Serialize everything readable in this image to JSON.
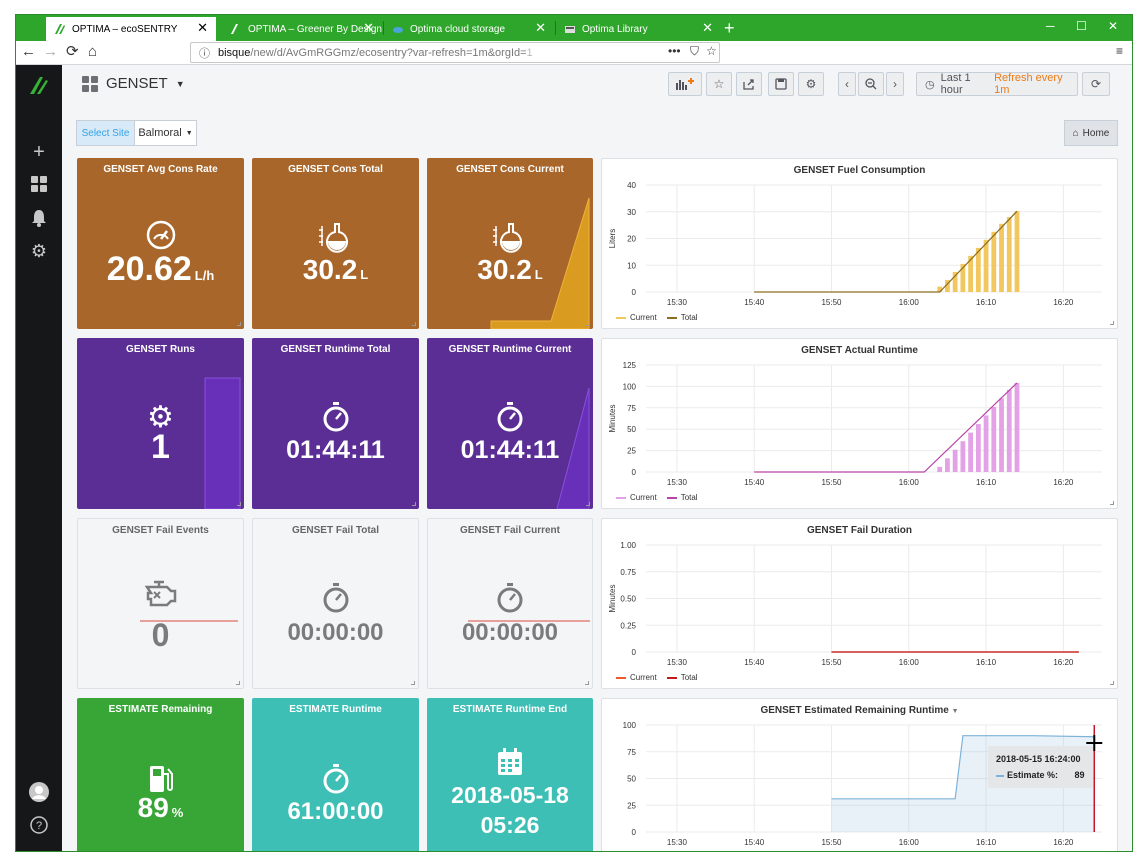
{
  "browser": {
    "tabs": [
      {
        "title": "OPTIMA – ecoSENTRY",
        "active": true
      },
      {
        "title": "OPTIMA – Greener By Design",
        "active": false
      },
      {
        "title": "Optima cloud storage",
        "active": false
      },
      {
        "title": "Optima Library",
        "active": false
      }
    ],
    "url": {
      "host": "bisque",
      "path": "/new/d/AvGmRGGmz/ecosentry?var-refresh=1m&orgId=",
      "tail": "1"
    }
  },
  "header": {
    "dashboard_title": "GENSET",
    "time_range": "Last 1 hour",
    "refresh_label": "Refresh every 1m"
  },
  "filters": {
    "site_label": "Select Site",
    "site_value": "Balmoral",
    "home_label": "Home"
  },
  "colors": {
    "fuel": "#a8662a",
    "runtime": "#5a2e94",
    "fail": "#f4f5f7",
    "estimate_green": "#37a637",
    "estimate_teal": "#3dbfb5",
    "fuel_current": "#f1c75e",
    "fuel_total": "#8c6d1f",
    "runtime_current": "#e3a1e6",
    "runtime_total": "#ba43a9",
    "fail_current": "#ef5a28",
    "fail_total": "#bf1b1b",
    "estimate_line": "#7eb2d8"
  },
  "stats": {
    "avg_cons_rate": {
      "title": "GENSET Avg Cons Rate",
      "value": "20.62",
      "unit": "L/h",
      "icon": "speedometer-icon"
    },
    "cons_total": {
      "title": "GENSET Cons Total",
      "value": "30.2",
      "unit": "L",
      "icon": "flask-icon"
    },
    "cons_current": {
      "title": "GENSET Cons Current",
      "value": "30.2",
      "unit": "L",
      "icon": "flask-icon"
    },
    "runs": {
      "title": "GENSET Runs",
      "value": "1",
      "icon": "gear-icon"
    },
    "runtime_total": {
      "title": "GENSET Runtime Total",
      "value": "01:44:11",
      "icon": "stopwatch-icon"
    },
    "runtime_current": {
      "title": "GENSET Runtime Current",
      "value": "01:44:11",
      "icon": "stopwatch-icon"
    },
    "fail_events": {
      "title": "GENSET Fail Events",
      "value": "0",
      "icon": "engine-fail-icon"
    },
    "fail_total": {
      "title": "GENSET Fail Total",
      "value": "00:00:00",
      "icon": "stopwatch-icon"
    },
    "fail_current": {
      "title": "GENSET Fail Current",
      "value": "00:00:00",
      "icon": "stopwatch-icon"
    },
    "est_remaining": {
      "title": "ESTIMATE Remaining",
      "value": "89",
      "unit": "%",
      "icon": "fuel-pump-icon"
    },
    "est_runtime": {
      "title": "ESTIMATE Runtime",
      "value": "61:00:00",
      "icon": "stopwatch-icon"
    },
    "est_runtime_end": {
      "title": "ESTIMATE Runtime End",
      "value_date": "2018-05-18",
      "value_time": "05:26",
      "icon": "calendar-icon"
    }
  },
  "graphs": {
    "fuel": {
      "title": "GENSET Fuel Consumption",
      "ylabel": "Liters",
      "legend": [
        "Current",
        "Total"
      ]
    },
    "runtime": {
      "title": "GENSET Actual Runtime",
      "ylabel": "Minutes",
      "legend": [
        "Current",
        "Total"
      ]
    },
    "fail": {
      "title": "GENSET Fail Duration",
      "ylabel": "Minutes",
      "legend": [
        "Current",
        "Total"
      ]
    },
    "estimate": {
      "title": "GENSET Estimated Remaining Runtime"
    }
  },
  "tooltip": {
    "time": "2018-05-15 16:24:00",
    "series": "Estimate %:",
    "value": "89"
  },
  "chart_data": [
    {
      "type": "bar",
      "title": "GENSET Fuel Consumption",
      "ylabel": "Liters",
      "ylim": [
        0,
        40
      ],
      "yticks": [
        "0",
        "10",
        "20",
        "30",
        "40"
      ],
      "xticks": [
        "15:30",
        "15:40",
        "15:50",
        "16:00",
        "16:10",
        "16:20"
      ],
      "xlim_minutes": [
        926,
        985
      ],
      "series": [
        {
          "name": "Current",
          "x_start_minutes": 964,
          "x_end_minutes": 974,
          "values": [
            2,
            4.5,
            7.5,
            10.5,
            13.5,
            16.5,
            19.5,
            22.5,
            25.5,
            28,
            30.2
          ]
        },
        {
          "name": "Total",
          "line_points": [
            [
              940,
              0
            ],
            [
              964,
              0
            ],
            [
              974,
              30.2
            ]
          ]
        }
      ]
    },
    {
      "type": "bar",
      "title": "GENSET Actual Runtime",
      "ylabel": "Minutes",
      "ylim": [
        0,
        125
      ],
      "yticks": [
        "0",
        "25",
        "50",
        "75",
        "100",
        "125"
      ],
      "xticks": [
        "15:30",
        "15:40",
        "15:50",
        "16:00",
        "16:10",
        "16:20"
      ],
      "xlim_minutes": [
        926,
        985
      ],
      "series": [
        {
          "name": "Current",
          "x_start_minutes": 964,
          "x_end_minutes": 974,
          "values": [
            6,
            16,
            26,
            36,
            46,
            56,
            66,
            76,
            86,
            96,
            104
          ]
        },
        {
          "name": "Total",
          "line_points": [
            [
              940,
              0
            ],
            [
              962,
              0
            ],
            [
              974,
              104
            ]
          ]
        }
      ]
    },
    {
      "type": "line",
      "title": "GENSET Fail Duration",
      "ylabel": "Minutes",
      "ylim": [
        0,
        1
      ],
      "yticks": [
        "0",
        "0.25",
        "0.50",
        "0.75",
        "1.00"
      ],
      "xticks": [
        "15:30",
        "15:40",
        "15:50",
        "16:00",
        "16:10",
        "16:20"
      ],
      "xlim_minutes": [
        926,
        985
      ],
      "series": [
        {
          "name": "Current",
          "line_points": [
            [
              950,
              0
            ],
            [
              982,
              0
            ]
          ]
        },
        {
          "name": "Total",
          "line_points": [
            [
              950,
              0
            ],
            [
              982,
              0
            ]
          ]
        }
      ]
    },
    {
      "type": "area",
      "title": "GENSET Estimated Remaining Runtime",
      "ylim": [
        0,
        100
      ],
      "yticks": [
        "0",
        "25",
        "50",
        "75",
        "100"
      ],
      "xticks": [
        "15:30",
        "15:40",
        "15:50",
        "16:00",
        "16:10",
        "16:20"
      ],
      "xlim_minutes": [
        926,
        985
      ],
      "series": [
        {
          "name": "Estimate %",
          "line_points": [
            [
              950,
              31
            ],
            [
              966,
              31
            ],
            [
              967,
              90
            ],
            [
              976,
              90
            ],
            [
              984,
              89
            ]
          ]
        }
      ]
    }
  ]
}
